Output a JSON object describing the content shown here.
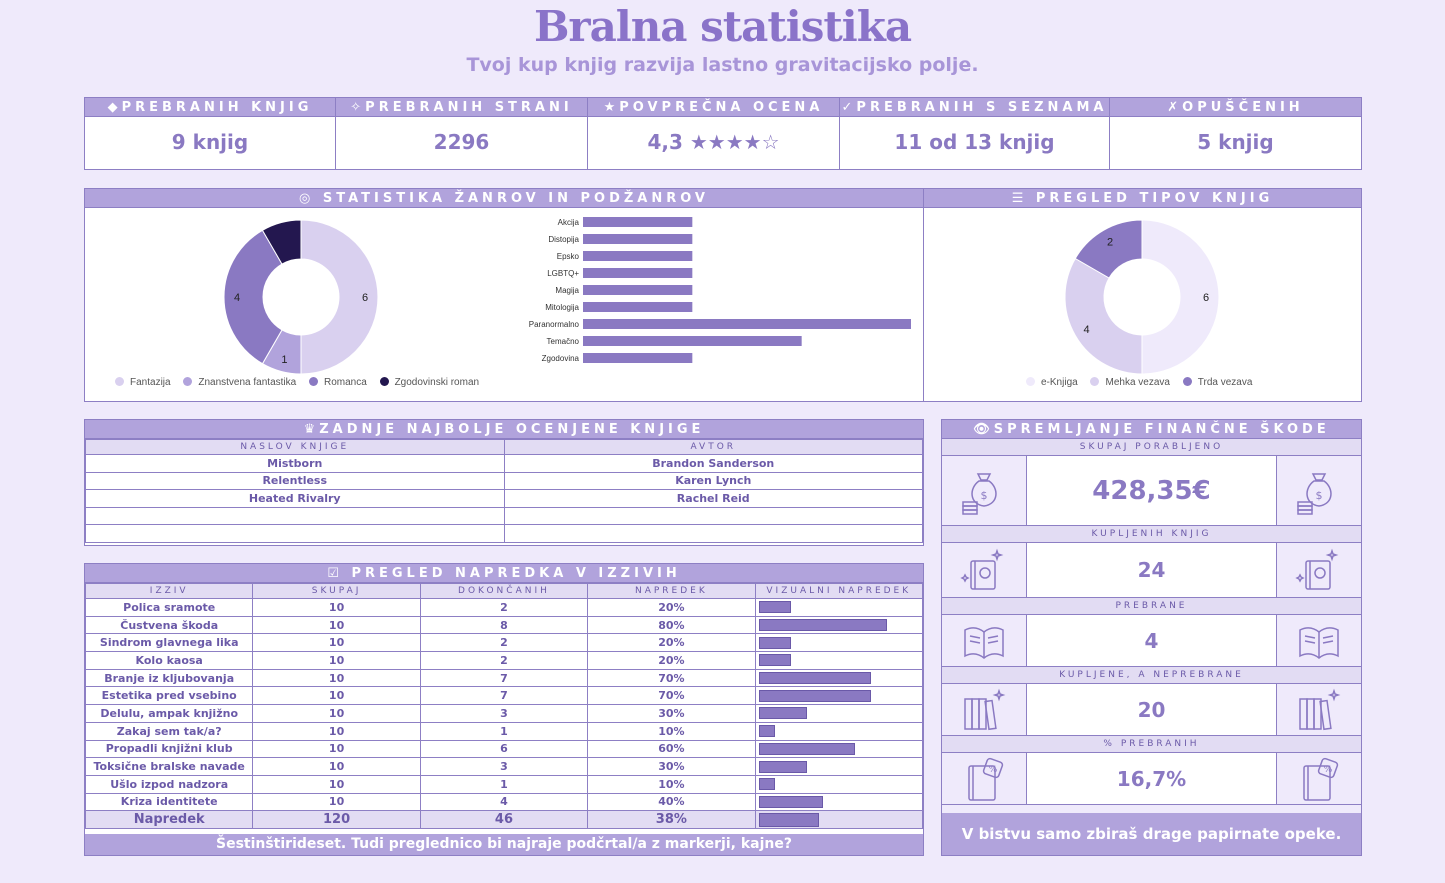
{
  "header": {
    "title": "Bralna statistika",
    "subtitle": "Tvoj kup knjig razvija lastno gravitacijsko polje."
  },
  "kpis": [
    {
      "label": "◆PREBRANIH KNJIG",
      "value": "9 knjig"
    },
    {
      "label": "✧PREBRANIH STRANI",
      "value": "2296"
    },
    {
      "label": "★POVPREČNA OCENA",
      "value": "4,3 ★★★★☆"
    },
    {
      "label": "✓PREBRANIH S SEZNAMA",
      "value": "11 od 13 knjig"
    },
    {
      "label": "✗OPUŠČENIH",
      "value": "5 knjig"
    }
  ],
  "genre_panel": {
    "title": "◎ STATISTIKA ŽANROV IN PODŽANROV"
  },
  "types_panel": {
    "title": "☰ PREGLED TIPOV KNJIG"
  },
  "colors": {
    "accent": "#8a79c2",
    "light": "#d9d0ef",
    "pale": "#efeafb",
    "dark": "#23174f",
    "mid": "#b1a3dc"
  },
  "chart_data": [
    {
      "type": "pie",
      "labels": [
        "Fantazija",
        "Znanstvena fantastika",
        "Romanca",
        "Zgodovinski roman"
      ],
      "values": [
        6,
        1,
        4,
        1
      ],
      "data_labels": [
        "6",
        "1",
        "4",
        ""
      ],
      "colors": [
        "#d9d0ef",
        "#b1a3dc",
        "#8a79c2",
        "#23174f"
      ],
      "legend": "bottom"
    },
    {
      "type": "bar",
      "orientation": "horizontal",
      "categories": [
        "Akcija",
        "Distopija",
        "Epsko",
        "LGBTQ+",
        "Magija",
        "Mitologija",
        "Paranormalno",
        "Temačno",
        "Zgodovina"
      ],
      "values": [
        1,
        1,
        1,
        1,
        1,
        1,
        3,
        2,
        1
      ],
      "xlim": [
        0,
        3
      ]
    },
    {
      "type": "pie",
      "labels": [
        "e-Knjiga",
        "Mehka vezava",
        "Trda vezava"
      ],
      "values": [
        6,
        4,
        2
      ],
      "data_labels": [
        "6",
        "4",
        "2"
      ],
      "colors": [
        "#efeafb",
        "#d9d0ef",
        "#8a79c2"
      ],
      "legend": "bottom"
    }
  ],
  "top_books": {
    "title": "♛ZADNJE NAJBOLJE OCENJENE KNJIGE",
    "columns": [
      "NASLOV KNJIGE",
      "AVTOR"
    ],
    "rows": [
      [
        "Mistborn",
        "Brandon Sanderson"
      ],
      [
        "Relentless",
        "Karen Lynch"
      ],
      [
        "Heated Rivalry",
        "Rachel Reid"
      ],
      [
        "",
        ""
      ],
      [
        "",
        ""
      ]
    ]
  },
  "challenges": {
    "title": "☑ PREGLED NAPREDKA V IZZIVIH",
    "columns": [
      "IZZIV",
      "SKUPAJ",
      "DOKONČANIH",
      "NAPREDEK",
      "VIZUALNI NAPREDEK"
    ],
    "rows": [
      {
        "name": "Polica sramote",
        "total": "10",
        "done": "2",
        "pct": "20%",
        "frac": 0.2
      },
      {
        "name": "Čustvena škoda",
        "total": "10",
        "done": "8",
        "pct": "80%",
        "frac": 0.8
      },
      {
        "name": "Sindrom glavnega lika",
        "total": "10",
        "done": "2",
        "pct": "20%",
        "frac": 0.2
      },
      {
        "name": "Kolo kaosa",
        "total": "10",
        "done": "2",
        "pct": "20%",
        "frac": 0.2
      },
      {
        "name": "Branje iz kljubovanja",
        "total": "10",
        "done": "7",
        "pct": "70%",
        "frac": 0.7
      },
      {
        "name": "Estetika pred vsebino",
        "total": "10",
        "done": "7",
        "pct": "70%",
        "frac": 0.7
      },
      {
        "name": "Delulu, ampak knjižno",
        "total": "10",
        "done": "3",
        "pct": "30%",
        "frac": 0.3
      },
      {
        "name": "Zakaj sem tak/a?",
        "total": "10",
        "done": "1",
        "pct": "10%",
        "frac": 0.1
      },
      {
        "name": "Propadli knjižni klub",
        "total": "10",
        "done": "6",
        "pct": "60%",
        "frac": 0.6
      },
      {
        "name": "Toksične bralske navade",
        "total": "10",
        "done": "3",
        "pct": "30%",
        "frac": 0.3
      },
      {
        "name": "Ušlo izpod nadzora",
        "total": "10",
        "done": "1",
        "pct": "10%",
        "frac": 0.1
      },
      {
        "name": "Kriza identitete",
        "total": "10",
        "done": "4",
        "pct": "40%",
        "frac": 0.4
      }
    ],
    "summary": {
      "name": "Napredek",
      "total": "120",
      "done": "46",
      "pct": "38%",
      "frac": 0.38
    },
    "footer": "Šestinštirideset. Tudi preglednico bi najraje podčrtal/a z markerji, kajne?"
  },
  "finance": {
    "title": "👁SPREMLJANJE FINANČNE ŠKODE",
    "items": [
      {
        "label": "SKUPAJ PORABLJENO",
        "value": "428,35€",
        "icon": "money-bag-icon"
      },
      {
        "label": "KUPLJENIH KNJIG",
        "value": "24",
        "icon": "magic-book-icon"
      },
      {
        "label": "PREBRANE",
        "value": "4",
        "icon": "open-book-icon"
      },
      {
        "label": "KUPLJENE, A NEPREBRANE",
        "value": "20",
        "icon": "bookshelf-icon"
      },
      {
        "label": "% PREBRANIH",
        "value": "16,7%",
        "icon": "percent-book-icon"
      }
    ],
    "footer": "V bistvu samo zbiraš drage papirnate opeke."
  }
}
